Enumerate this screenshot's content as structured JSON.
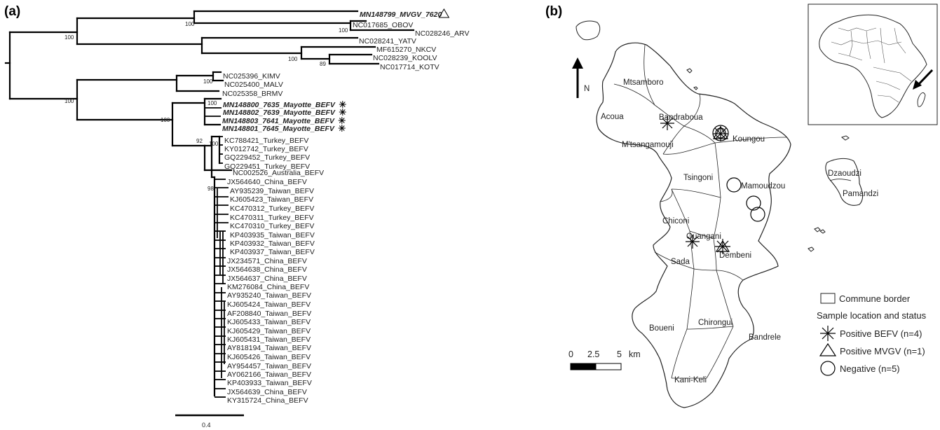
{
  "panels": {
    "a": {
      "label": "(a)"
    },
    "b": {
      "label": "(b)"
    }
  },
  "tree": {
    "scale_label": "0.4",
    "leaves": [
      {
        "id": "MN148799_MVGV_7620",
        "highlight": true,
        "marker": "triangle"
      },
      {
        "id": "NC017685_OBOV"
      },
      {
        "id": "NC028246_ARV"
      },
      {
        "id": "NC028241_YATV"
      },
      {
        "id": "MF615270_NKCV"
      },
      {
        "id": "NC028239_KOOLV"
      },
      {
        "id": "NC017714_KOTV"
      },
      {
        "id": "NC025396_KIMV"
      },
      {
        "id": "NC025400_MALV"
      },
      {
        "id": "NC025358_BRMV"
      },
      {
        "id": "MN148800_7635_Mayotte_BEFV",
        "highlight": true,
        "marker": "asterisk"
      },
      {
        "id": "MN148802_7639_Mayotte_BEFV",
        "highlight": true,
        "marker": "asterisk"
      },
      {
        "id": "MN148803_7641_Mayotte_BEFV",
        "highlight": true,
        "marker": "asterisk"
      },
      {
        "id": "MN148801_7645_Mayotte_BEFV",
        "highlight": true,
        "marker": "asterisk"
      },
      {
        "id": "KC788421_Turkey_BEFV"
      },
      {
        "id": "KY012742_Turkey_BEFV"
      },
      {
        "id": "GQ229452_Turkey_BEFV"
      },
      {
        "id": "GQ229451_Turkey_BEFV"
      },
      {
        "id": "NC002526_Australia_BEFV"
      },
      {
        "id": "JX564640_China_BEFV"
      },
      {
        "id": "AY935239_Taiwan_BEFV"
      },
      {
        "id": "KJ605423_Taiwan_BEFV"
      },
      {
        "id": "KC470312_Turkey_BEFV"
      },
      {
        "id": "KC470311_Turkey_BEFV"
      },
      {
        "id": "KC470310_Turkey_BEFV"
      },
      {
        "id": "KP403935_Taiwan_BEFV"
      },
      {
        "id": "KP403932_Taiwan_BEFV"
      },
      {
        "id": "KP403937_Taiwan_BEFV"
      },
      {
        "id": "JX234571_China_BEFV"
      },
      {
        "id": "JX564638_China_BEFV"
      },
      {
        "id": "JX564637_China_BEFV"
      },
      {
        "id": "KM276084_China_BEFV"
      },
      {
        "id": "AY935240_Taiwan_BEFV"
      },
      {
        "id": "KJ605424_Taiwan_BEFV"
      },
      {
        "id": "AF208840_Taiwan_BEFV"
      },
      {
        "id": "KJ605433_Taiwan_BEFV"
      },
      {
        "id": "KJ605429_Taiwan_BEFV"
      },
      {
        "id": "KJ605431_Taiwan_BEFV"
      },
      {
        "id": "AY818194_Taiwan_BEFV"
      },
      {
        "id": "KJ605426_Taiwan_BEFV"
      },
      {
        "id": "AY954457_Taiwan_BEFV"
      },
      {
        "id": "AY062166_Taiwan_BEFV"
      },
      {
        "id": "KP403933_Taiwan_BEFV"
      },
      {
        "id": "JX564639_China_BEFV"
      },
      {
        "id": "KY315724_China_BEFV"
      }
    ],
    "support_values": [
      "100",
      "100",
      "100",
      "100",
      "89",
      "100",
      "100",
      "100",
      "100",
      "92",
      "100",
      "98"
    ]
  },
  "map": {
    "north_label": "N",
    "communes": [
      "Mtsamboro",
      "Acoua",
      "Bandraboua",
      "Koungou",
      "M'tsangamouji",
      "Tsingoni",
      "Mamoudzou",
      "Dzaoudzi",
      "Pamandzi",
      "Chiconi",
      "Ouangani",
      "Dembeni",
      "Sada",
      "Boueni",
      "Chirongui",
      "Bandrele",
      "Kani-Keli"
    ],
    "scale": {
      "ticks": [
        "0",
        "2.5",
        "5"
      ],
      "unit": "km"
    },
    "legend": {
      "border_label": "Commune border",
      "heading": "Sample location and status",
      "items": [
        {
          "symbol": "asterisk-icon",
          "label": "Positive BEFV (n=4)"
        },
        {
          "symbol": "triangle-icon",
          "label": "Positive MVGV (n=1)"
        },
        {
          "symbol": "circle-icon",
          "label": "Negative (n=5)"
        }
      ]
    }
  }
}
